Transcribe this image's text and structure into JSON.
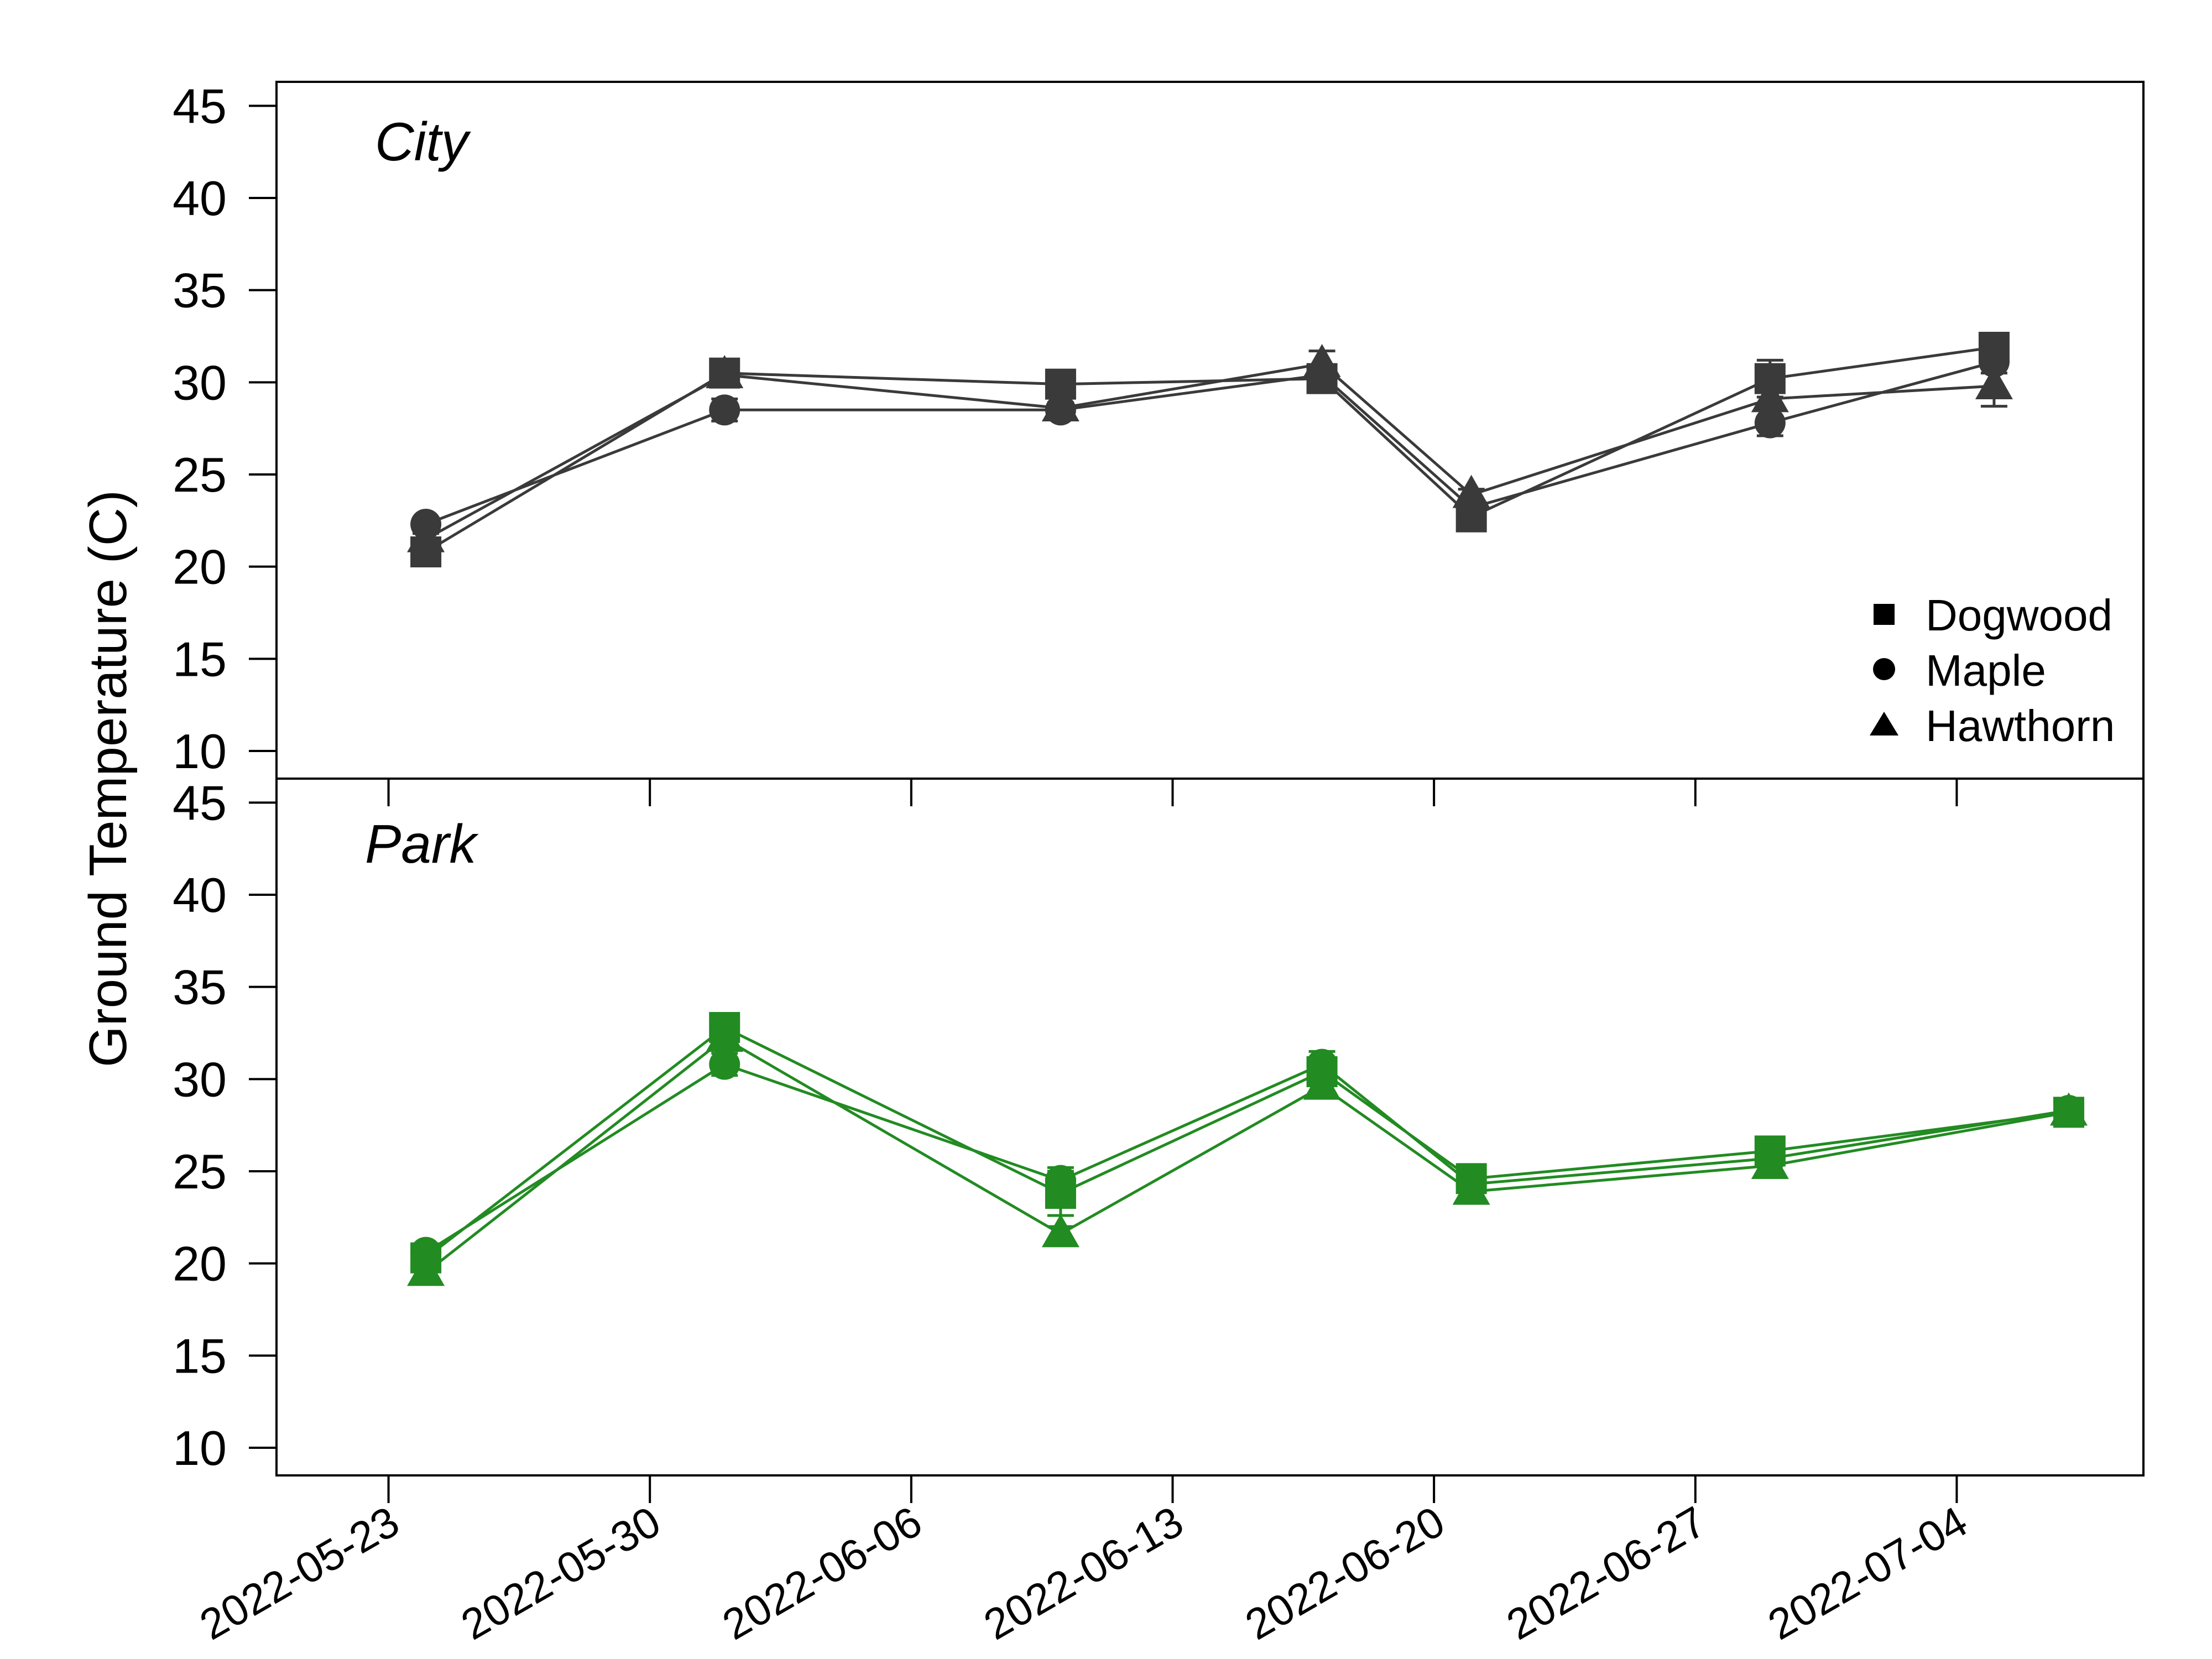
{
  "chart_data": {
    "type": "line",
    "ylabel": "Ground Temperature  (C)",
    "xlabel": "",
    "x_tick_labels": [
      "2022-05-23",
      "2022-05-30",
      "2022-06-06",
      "2022-06-13",
      "2022-06-20",
      "2022-06-27",
      "2022-07-04"
    ],
    "y_tick_labels": [
      "10",
      "15",
      "20",
      "25",
      "30",
      "35",
      "40",
      "45"
    ],
    "ylim": [
      8.5,
      46.3
    ],
    "xlim": [
      "2022-05-20",
      "2022-07-09"
    ],
    "legend": {
      "position": "bottom-right of top panel",
      "entries": [
        {
          "name": "Dogwood",
          "marker": "square"
        },
        {
          "name": "Maple",
          "marker": "circle"
        },
        {
          "name": "Hawthorn",
          "marker": "triangle"
        }
      ]
    },
    "panels": [
      {
        "label": "City",
        "color": "#3a3a3a",
        "series": [
          {
            "name": "Dogwood",
            "marker": "square",
            "x": [
              "2022-05-24",
              "2022-06-01",
              "2022-06-10",
              "2022-06-17",
              "2022-06-21",
              "2022-06-29",
              "2022-07-05"
            ],
            "values": [
              20.8,
              30.5,
              29.9,
              30.2,
              22.7,
              30.2,
              31.9
            ],
            "errors": [
              0.3,
              0.5,
              0.4,
              0.4,
              0.3,
              1.0,
              0.6
            ]
          },
          {
            "name": "Maple",
            "marker": "circle",
            "x": [
              "2022-05-24",
              "2022-06-01",
              "2022-06-10",
              "2022-06-17",
              "2022-06-21",
              "2022-06-29",
              "2022-07-05"
            ],
            "values": [
              22.3,
              28.5,
              28.5,
              30.4,
              23.2,
              27.8,
              31.1
            ],
            "errors": [
              0.3,
              0.6,
              0.3,
              0.5,
              0.3,
              0.7,
              0.6
            ]
          },
          {
            "name": "Hawthorn",
            "marker": "triangle",
            "x": [
              "2022-05-24",
              "2022-06-01",
              "2022-06-10",
              "2022-06-17",
              "2022-06-21",
              "2022-06-29",
              "2022-07-05"
            ],
            "values": [
              21.5,
              30.4,
              28.6,
              31.0,
              23.9,
              29.1,
              29.8
            ],
            "errors": [
              0.3,
              0.6,
              0.3,
              0.7,
              0.3,
              0.6,
              1.1
            ]
          }
        ]
      },
      {
        "label": "Park",
        "color": "#228b22",
        "series": [
          {
            "name": "Dogwood",
            "marker": "square",
            "x": [
              "2022-05-24",
              "2022-06-01",
              "2022-06-10",
              "2022-06-17",
              "2022-06-21",
              "2022-06-29",
              "2022-07-07"
            ],
            "values": [
              20.3,
              32.8,
              23.8,
              30.4,
              24.6,
              26.1,
              28.2
            ],
            "errors": [
              0.4,
              0.4,
              1.2,
              0.6,
              0.3,
              0.3,
              0.3
            ]
          },
          {
            "name": "Maple",
            "marker": "circle",
            "x": [
              "2022-05-24",
              "2022-06-01",
              "2022-06-10",
              "2022-06-17",
              "2022-06-21",
              "2022-06-29",
              "2022-07-07"
            ],
            "values": [
              20.6,
              30.8,
              24.5,
              30.8,
              24.3,
              25.7,
              28.3
            ],
            "errors": [
              0.3,
              0.6,
              0.7,
              0.7,
              0.3,
              0.3,
              0.3
            ]
          },
          {
            "name": "Hawthorn",
            "marker": "triangle",
            "x": [
              "2022-05-24",
              "2022-06-01",
              "2022-06-10",
              "2022-06-17",
              "2022-06-21",
              "2022-06-29",
              "2022-07-07"
            ],
            "values": [
              19.5,
              32.2,
              21.6,
              29.6,
              23.9,
              25.3,
              28.2
            ],
            "errors": [
              0.3,
              0.5,
              0.4,
              0.5,
              0.3,
              0.3,
              0.3
            ]
          }
        ]
      }
    ],
    "grid": false
  }
}
